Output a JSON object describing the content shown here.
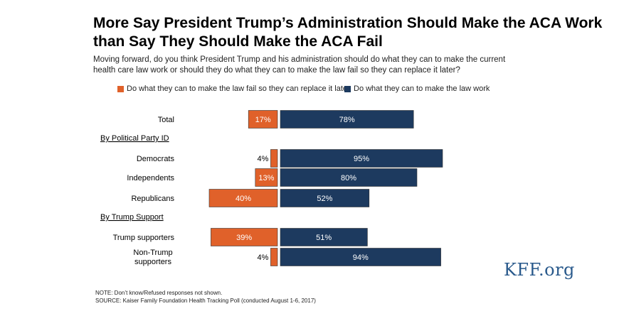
{
  "title": "More Say President Trump’s Administration Should Make the ACA Work than Say They Should Make the ACA Fail",
  "subtitle": "Moving forward, do you think President Trump and his administration should do what they can to make the current health care law work or should they do what they can to make the law fail so they can replace it later?",
  "legend": {
    "fail_label": "Do what they can to make the law fail so they can replace it later",
    "work_label": "Do what they can to make the law work"
  },
  "colors": {
    "fail": "#e0612a",
    "work": "#1d3a5f"
  },
  "chart_data": {
    "type": "bar",
    "orientation": "diverging-horizontal",
    "title": "More Say President Trump’s Administration Should Make the ACA Work than Say They Should Make the ACA Fail",
    "unit": "%",
    "sections": [
      "By Political Party ID",
      "By Trump Support"
    ],
    "rows": [
      {
        "category": "Total",
        "section": null,
        "fail": 17,
        "work": 78
      },
      {
        "category": "Democrats",
        "section": "By Political Party ID",
        "fail": 4,
        "work": 95
      },
      {
        "category": "Independents",
        "section": "By Political Party ID",
        "fail": 13,
        "work": 80
      },
      {
        "category": "Republicans",
        "section": "By Political Party ID",
        "fail": 40,
        "work": 52
      },
      {
        "category": "Trump supporters",
        "section": "By Trump Support",
        "fail": 39,
        "work": 51
      },
      {
        "category": "Non-Trump supporters",
        "section": "By Trump Support",
        "fail": 4,
        "work": 94
      }
    ],
    "series": [
      {
        "name": "Do what they can to make the law fail so they can replace it later",
        "key": "fail"
      },
      {
        "name": "Do what they can to make the law work",
        "key": "work"
      }
    ]
  },
  "notes": {
    "note": "NOTE: Don’t know/Refused responses not shown.",
    "source": "SOURCE: Kaiser Family Foundation Health Tracking Poll (conducted August 1-6, 2017)"
  },
  "logo": "KFF.org"
}
